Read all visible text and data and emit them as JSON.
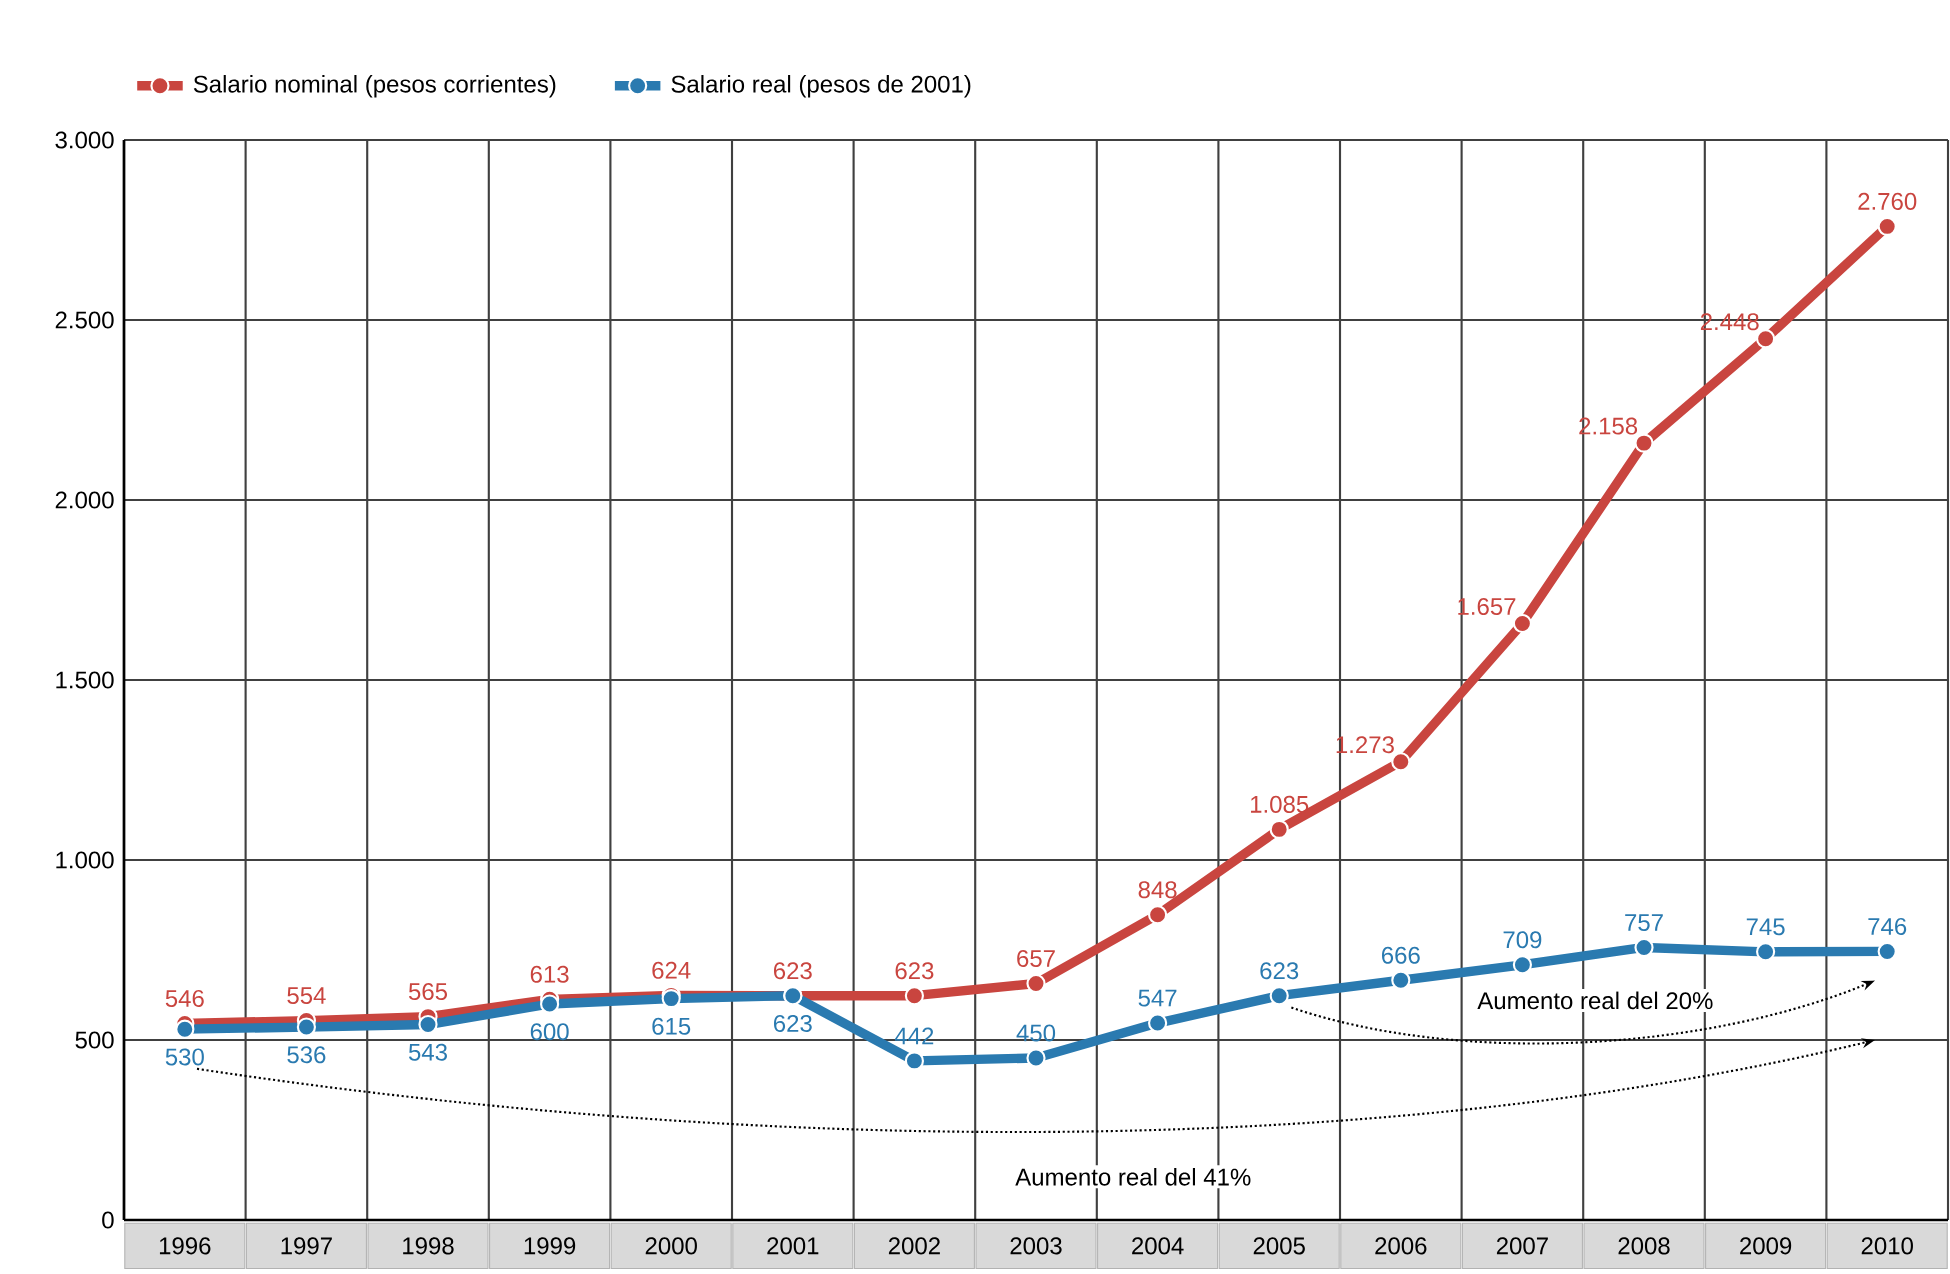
{
  "chart_data": {
    "type": "line",
    "categories": [
      "1996",
      "1997",
      "1998",
      "1999",
      "2000",
      "2001",
      "2002",
      "2003",
      "2004",
      "2005",
      "2006",
      "2007",
      "2008",
      "2009",
      "2010"
    ],
    "series": [
      {
        "name": "Salario nominal (pesos corrientes)",
        "color": "#c9453f",
        "values": [
          546,
          554,
          565,
          613,
          624,
          623,
          623,
          657,
          848,
          1085,
          1273,
          1657,
          2158,
          2448,
          2760
        ],
        "value_labels": [
          "546",
          "554",
          "565",
          "613",
          "624",
          "623",
          "623",
          "657",
          "848",
          "1.085",
          "1.273",
          "1.657",
          "2.158",
          "2.448",
          "2.760"
        ]
      },
      {
        "name": "Salario real (pesos de 2001)",
        "color": "#2a7ab0",
        "values": [
          530,
          536,
          543,
          600,
          615,
          623,
          442,
          450,
          547,
          623,
          666,
          709,
          757,
          745,
          746
        ],
        "value_labels": [
          "530",
          "536",
          "543",
          "600",
          "615",
          "623",
          "442",
          "450",
          "547",
          "623",
          "666",
          "709",
          "757",
          "745",
          "746"
        ]
      }
    ],
    "ylim": [
      0,
      3000
    ],
    "yticks": [
      {
        "value": 0,
        "label": "0"
      },
      {
        "value": 500,
        "label": "500"
      },
      {
        "value": 1000,
        "label": "1.000"
      },
      {
        "value": 1500,
        "label": "1.500"
      },
      {
        "value": 2000,
        "label": "2.000"
      },
      {
        "value": 2500,
        "label": "2.500"
      },
      {
        "value": 3000,
        "label": "3.000"
      }
    ],
    "grid": true,
    "legend": "top left",
    "marker": "circle",
    "line_style": "solid",
    "annotations": [
      "Aumento real del 41%",
      "Aumento real del 20%"
    ]
  }
}
